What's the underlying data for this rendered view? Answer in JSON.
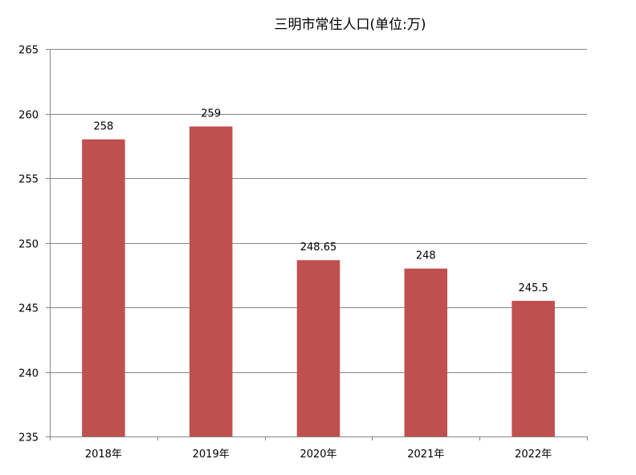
{
  "chart_data": {
    "type": "bar",
    "title": "三明市常住人口(单位:万)",
    "categories": [
      "2018年",
      "2019年",
      "2020年",
      "2021年",
      "2022年"
    ],
    "series": [
      {
        "values": [
          258,
          259,
          248.65,
          248,
          245.5
        ]
      }
    ],
    "data_labels": [
      "258",
      "259",
      "248.65",
      "248",
      "245.5"
    ],
    "ylim": [
      235,
      265
    ],
    "yticks": [
      235,
      240,
      245,
      250,
      255,
      260,
      265
    ],
    "grid": true,
    "legend": "none",
    "colors": {
      "bar": "#C0504D",
      "grid": "#868686",
      "axis": "#868686"
    }
  }
}
